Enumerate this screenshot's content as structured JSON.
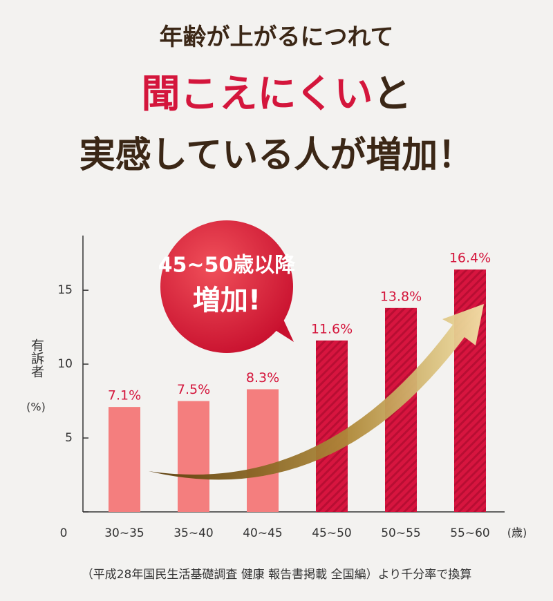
{
  "chart_data": {
    "type": "bar",
    "title_lines": [
      [
        "年齢が上がるにつれて"
      ],
      [
        "聞こえにくい",
        "と"
      ],
      [
        "実感している人が増加！"
      ]
    ],
    "annotation": [
      "45~50歳以降",
      "増加!"
    ],
    "ylabel": "有訴者",
    "ylabel_unit": "(%)",
    "xlabel_unit": "(歳)",
    "categories": [
      "30~35",
      "35~40",
      "40~45",
      "45~50",
      "50~55",
      "55~60"
    ],
    "values": [
      7.1,
      7.5,
      8.3,
      11.6,
      13.8,
      16.4
    ],
    "value_labels": [
      "7.1%",
      "7.5%",
      "8.3%",
      "11.6%",
      "13.8%",
      "16.4%"
    ],
    "colors": [
      "#f47e7e",
      "#f47e7e",
      "#f47e7e",
      "#d7153f",
      "#d7153f",
      "#d7153f"
    ],
    "patterns": [
      "solid",
      "solid",
      "solid",
      "hatched",
      "hatched",
      "hatched"
    ],
    "ylim": [
      0,
      18.7
    ],
    "yticks": [
      0,
      5,
      10,
      15
    ],
    "source": "（平成28年国民生活基礎調査 健康 報告書掲載 全国編）より千分率で換算"
  }
}
